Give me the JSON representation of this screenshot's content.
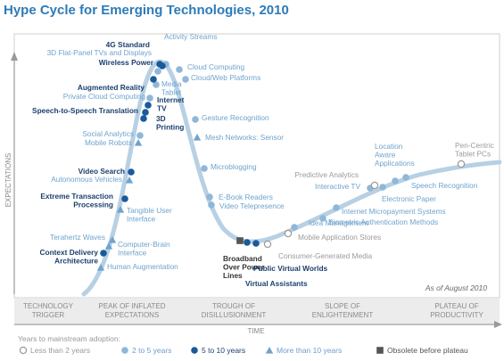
{
  "title": "Hype Cycle for Emerging Technologies, 2010",
  "axes": {
    "y_label": "EXPECTATIONS",
    "x_label": "TIME",
    "as_of": "As of August 2010"
  },
  "phases": [
    {
      "line1": "TECHNOLOGY",
      "line2": "TRIGGER"
    },
    {
      "line1": "PEAK OF INFLATED",
      "line2": "EXPECTATIONS"
    },
    {
      "line1": "TROUGH OF",
      "line2": "DISILLUSIONMENT"
    },
    {
      "line1": "SLOPE OF",
      "line2": "ENLIGHTENMENT"
    },
    {
      "line1": "PLATEAU OF",
      "line2": "PRODUCTIVITY"
    }
  ],
  "legend": {
    "title": "Years to mainstream adoption:",
    "items": [
      {
        "label": "Less than 2 years",
        "marker": "circle-open"
      },
      {
        "label": "2 to 5 years",
        "marker": "circle-light"
      },
      {
        "label": "5 to 10 years",
        "marker": "circle-dark"
      },
      {
        "label": "More than 10 years",
        "marker": "triangle"
      },
      {
        "label": "Obsolete before plateau",
        "marker": "square"
      }
    ]
  },
  "colors": {
    "title": "#2d7bb8",
    "curve": "#b7d0e4",
    "dark": "#1a5a9a",
    "light": "#8fb7d8",
    "triangle": "#6fa3cd",
    "label_light": "#6fa3cd",
    "label_dark": "#1b3f6e",
    "gray": "#9a9a9a",
    "obsolete": "#555555"
  },
  "technologies": [
    {
      "lines": [
        "Activity Streams"
      ],
      "marker": "circle-light"
    },
    {
      "lines": [
        "4G Standard"
      ],
      "marker": "circle-dark"
    },
    {
      "lines": [
        "3D Flat-Panel TVs and Displays"
      ],
      "marker": "circle-light"
    },
    {
      "lines": [
        "Wireless Power"
      ],
      "marker": "circle-dark"
    },
    {
      "lines": [
        "Cloud Computing"
      ],
      "marker": "circle-light"
    },
    {
      "lines": [
        "Media",
        "Tablet"
      ],
      "marker": "circle-light"
    },
    {
      "lines": [
        "Cloud/Web Platforms"
      ],
      "marker": "circle-light"
    },
    {
      "lines": [
        "Augmented Reality"
      ],
      "marker": "circle-dark"
    },
    {
      "lines": [
        "Private Cloud Computing"
      ],
      "marker": "circle-light"
    },
    {
      "lines": [
        "Internet",
        "TV"
      ],
      "marker": "circle-dark"
    },
    {
      "lines": [
        "Speech-to-Speech Translation"
      ],
      "marker": "circle-dark"
    },
    {
      "lines": [
        "3D",
        "Printing"
      ],
      "marker": "circle-dark"
    },
    {
      "lines": [
        "Gesture Recognition"
      ],
      "marker": "circle-light"
    },
    {
      "lines": [
        "Social Analytics"
      ],
      "marker": "circle-light"
    },
    {
      "lines": [
        "Mobile Robots"
      ],
      "marker": "triangle"
    },
    {
      "lines": [
        "Mesh Networks: Sensor"
      ],
      "marker": "triangle"
    },
    {
      "lines": [
        "Video Search"
      ],
      "marker": "circle-dark"
    },
    {
      "lines": [
        "Autonomous Vehicles"
      ],
      "marker": "triangle"
    },
    {
      "lines": [
        "Microblogging"
      ],
      "marker": "circle-light"
    },
    {
      "lines": [
        "Extreme Transaction",
        "Processing"
      ],
      "marker": "circle-dark"
    },
    {
      "lines": [
        "E-Book Readers"
      ],
      "marker": "circle-light"
    },
    {
      "lines": [
        "Video Telepresence"
      ],
      "marker": "circle-light"
    },
    {
      "lines": [
        "Tangible User",
        "Interface"
      ],
      "marker": "triangle"
    },
    {
      "lines": [
        "Terahertz Waves"
      ],
      "marker": "triangle"
    },
    {
      "lines": [
        "Computer-Brain",
        "Interface"
      ],
      "marker": "triangle"
    },
    {
      "lines": [
        "Context Delivery",
        "Architecture"
      ],
      "marker": "circle-dark"
    },
    {
      "lines": [
        "Human Augmentation"
      ],
      "marker": "triangle"
    },
    {
      "lines": [
        "Broadband",
        "Over Power",
        "Lines"
      ],
      "marker": "square"
    },
    {
      "lines": [
        "Public Virtual Worlds"
      ],
      "marker": "circle-dark"
    },
    {
      "lines": [
        "Virtual Assistants"
      ],
      "marker": "circle-dark"
    },
    {
      "lines": [
        "Consumer-Generated Media"
      ],
      "marker": "circle-open"
    },
    {
      "lines": [
        "Mobile Application Stores"
      ],
      "marker": "circle-open"
    },
    {
      "lines": [
        "Idea Management"
      ],
      "marker": "circle-light"
    },
    {
      "lines": [
        "Biometric Authentication Methods"
      ],
      "marker": "circle-light"
    },
    {
      "lines": [
        "Internet Micropayment Systems"
      ],
      "marker": "circle-light"
    },
    {
      "lines": [
        "Interactive TV"
      ],
      "marker": "circle-light"
    },
    {
      "lines": [
        "Predictive Analytics"
      ],
      "marker": "circle-open"
    },
    {
      "lines": [
        "Electronic Paper"
      ],
      "marker": "circle-light"
    },
    {
      "lines": [
        "Location",
        "Aware",
        "Applications"
      ],
      "marker": "circle-light"
    },
    {
      "lines": [
        "Speech Recognition"
      ],
      "marker": "circle-light"
    },
    {
      "lines": [
        "Pen-Centric",
        "Tablet PCs"
      ],
      "marker": "circle-open"
    }
  ]
}
